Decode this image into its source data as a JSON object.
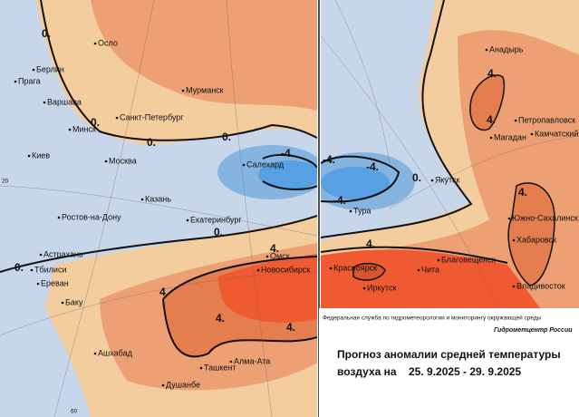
{
  "map": {
    "cities_left": [
      "Осло",
      "Берлин",
      "Прага",
      "Варшава",
      "Мурманск",
      "Санкт-Петербург",
      "Минск",
      "Киев",
      "Москва",
      "Казань",
      "Ростов-на-Дону",
      "Екатеринбург",
      "Астрахань",
      "Тбилиси",
      "Ереван",
      "Баку",
      "Омск",
      "Новосибирск",
      "Ашхабад",
      "Ташкент",
      "Алма-Ата",
      "Душанбе",
      "Салехард"
    ],
    "cities_right": [
      "Анадырь",
      "Петропавловск",
      "Камчатский",
      "Магадан",
      "Якутск",
      "Тура",
      "Южно-Сахалинск",
      "Хабаровск",
      "Благовещенск",
      "Чита",
      "Красноярск",
      "Иркутск",
      "Владивосток"
    ],
    "contours_left": [
      "0.",
      "0.",
      "0.",
      "0.",
      "0.",
      "0.",
      "-4.",
      "4.",
      "4.",
      "4.",
      "4."
    ],
    "contours_right": [
      "-4.",
      "-4.",
      "-4.",
      "0.",
      "4.",
      "4.",
      "4.",
      "4."
    ],
    "grid_labels": [
      "20",
      "60"
    ]
  },
  "caption": {
    "agency": "Федеральная служба по гидрометеорологии и мониторингу окружающей среды",
    "center": "Гидрометцентр России",
    "title": "Прогноз аномалии средней температуры",
    "prefix": "воздуха на",
    "period": "25. 9.2025 - 29. 9.2025"
  }
}
